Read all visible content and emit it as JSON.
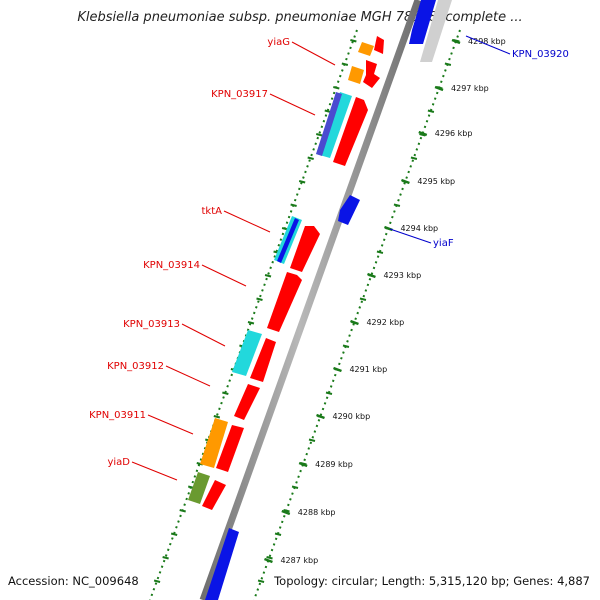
{
  "title": "Klebsiella pneumoniae subsp. pneumoniae MGH 78578, complete ...",
  "footer": {
    "accession": "Accession: NC_009648",
    "info": "Topology: circular; Length: 5,315,120 bp; Genes: 4,887"
  },
  "scale_ticks": [
    "4287 kbp",
    "4288 kbp",
    "4289 kbp",
    "4290 kbp",
    "4291 kbp",
    "4292 kbp",
    "4293 kbp",
    "4294 kbp",
    "4295 kbp",
    "4296 kbp",
    "4297 kbp",
    "4298 kbp"
  ],
  "gene_labels": [
    {
      "name": "yiaG",
      "color": "#e00000"
    },
    {
      "name": "KPN_03917",
      "color": "#e00000"
    },
    {
      "name": "tktA",
      "color": "#e00000"
    },
    {
      "name": "KPN_03914",
      "color": "#e00000"
    },
    {
      "name": "KPN_03913",
      "color": "#e00000"
    },
    {
      "name": "KPN_03912",
      "color": "#e00000"
    },
    {
      "name": "KPN_03911",
      "color": "#e00000"
    },
    {
      "name": "yiaD",
      "color": "#e00000"
    },
    {
      "name": "KPN_03920",
      "color": "#0000cc"
    },
    {
      "name": "yiaF",
      "color": "#0000cc"
    }
  ],
  "colors": {
    "forward_gene": "#ff0000",
    "reverse_gene": "#0a14e6",
    "backbone": "#8c8c8c",
    "tick": "#1a7a1a",
    "orange_feature": "#ff9900",
    "cyan_feature": "#22d8dc",
    "olive_feature": "#6a9a30"
  }
}
